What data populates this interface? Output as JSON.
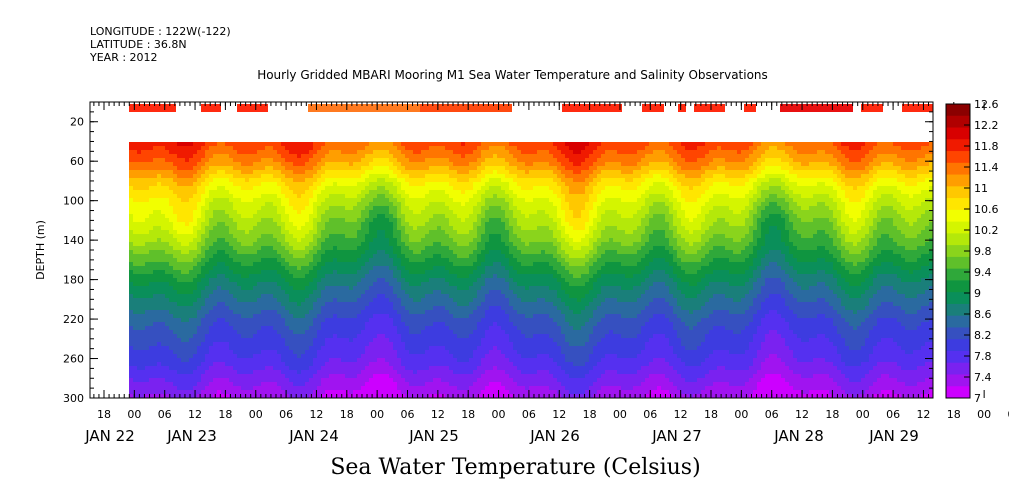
{
  "meta": {
    "longitude": "LONGITUDE : 122W(-122)",
    "latitude": "LATITUDE : 36.8N",
    "year": "YEAR : 2012"
  },
  "chart_data": {
    "type": "heatmap",
    "title": "Hourly Gridded MBARI Mooring M1 Sea Water Temperature and Salinity Observations",
    "colorbar_title": "Sea Water Temperature (Celsius)",
    "ylabel": "DEPTH (m)",
    "ylim": [
      300,
      0
    ],
    "y_ticks": [
      20,
      60,
      100,
      140,
      180,
      220,
      260,
      300
    ],
    "x_hour_labels": [
      "18",
      "00",
      "06",
      "12",
      "18",
      "00",
      "06",
      "12",
      "18",
      "00",
      "06",
      "12",
      "18",
      "00",
      "06",
      "12",
      "18",
      "00",
      "06",
      "12",
      "18",
      "00",
      "06",
      "12",
      "18",
      "00",
      "06",
      "12",
      "18",
      "00",
      "06",
      "12",
      "18",
      "00",
      "06",
      "12"
    ],
    "x_date_labels": [
      "JAN 22",
      "JAN 23",
      "JAN 24",
      "JAN 25",
      "JAN 26",
      "JAN 27",
      "JAN 28",
      "JAN 29"
    ],
    "colorbar_levels": [
      "12.6",
      "12.2",
      "11.8",
      "11.4",
      "11",
      "10.6",
      "10.2",
      "9.8",
      "9.4",
      "9",
      "8.6",
      "8.2",
      "7.8",
      "7.4",
      "7"
    ],
    "colors": [
      "#8b0000",
      "#b00000",
      "#d80000",
      "#f01a00",
      "#ff4500",
      "#ff7500",
      "#ff9e00",
      "#ffc800",
      "#ffe600",
      "#f2ff00",
      "#d4f500",
      "#b4e80a",
      "#8ad41c",
      "#5fc02a",
      "#2fa83a",
      "#0f9540",
      "#0a8f5a",
      "#1a7f7a",
      "#2a6aa0",
      "#3650c0",
      "#3d3ce0",
      "#5530f0",
      "#7a22f0",
      "#a014f0",
      "#cc00ff"
    ],
    "profile_summary": {
      "depth_m": [
        10,
        40,
        60,
        80,
        100,
        140,
        180,
        220,
        260,
        300
      ],
      "temperature_c": [
        11.8,
        11.6,
        11.2,
        10.6,
        10.2,
        9.6,
        8.8,
        8.2,
        7.8,
        7.2
      ]
    }
  }
}
